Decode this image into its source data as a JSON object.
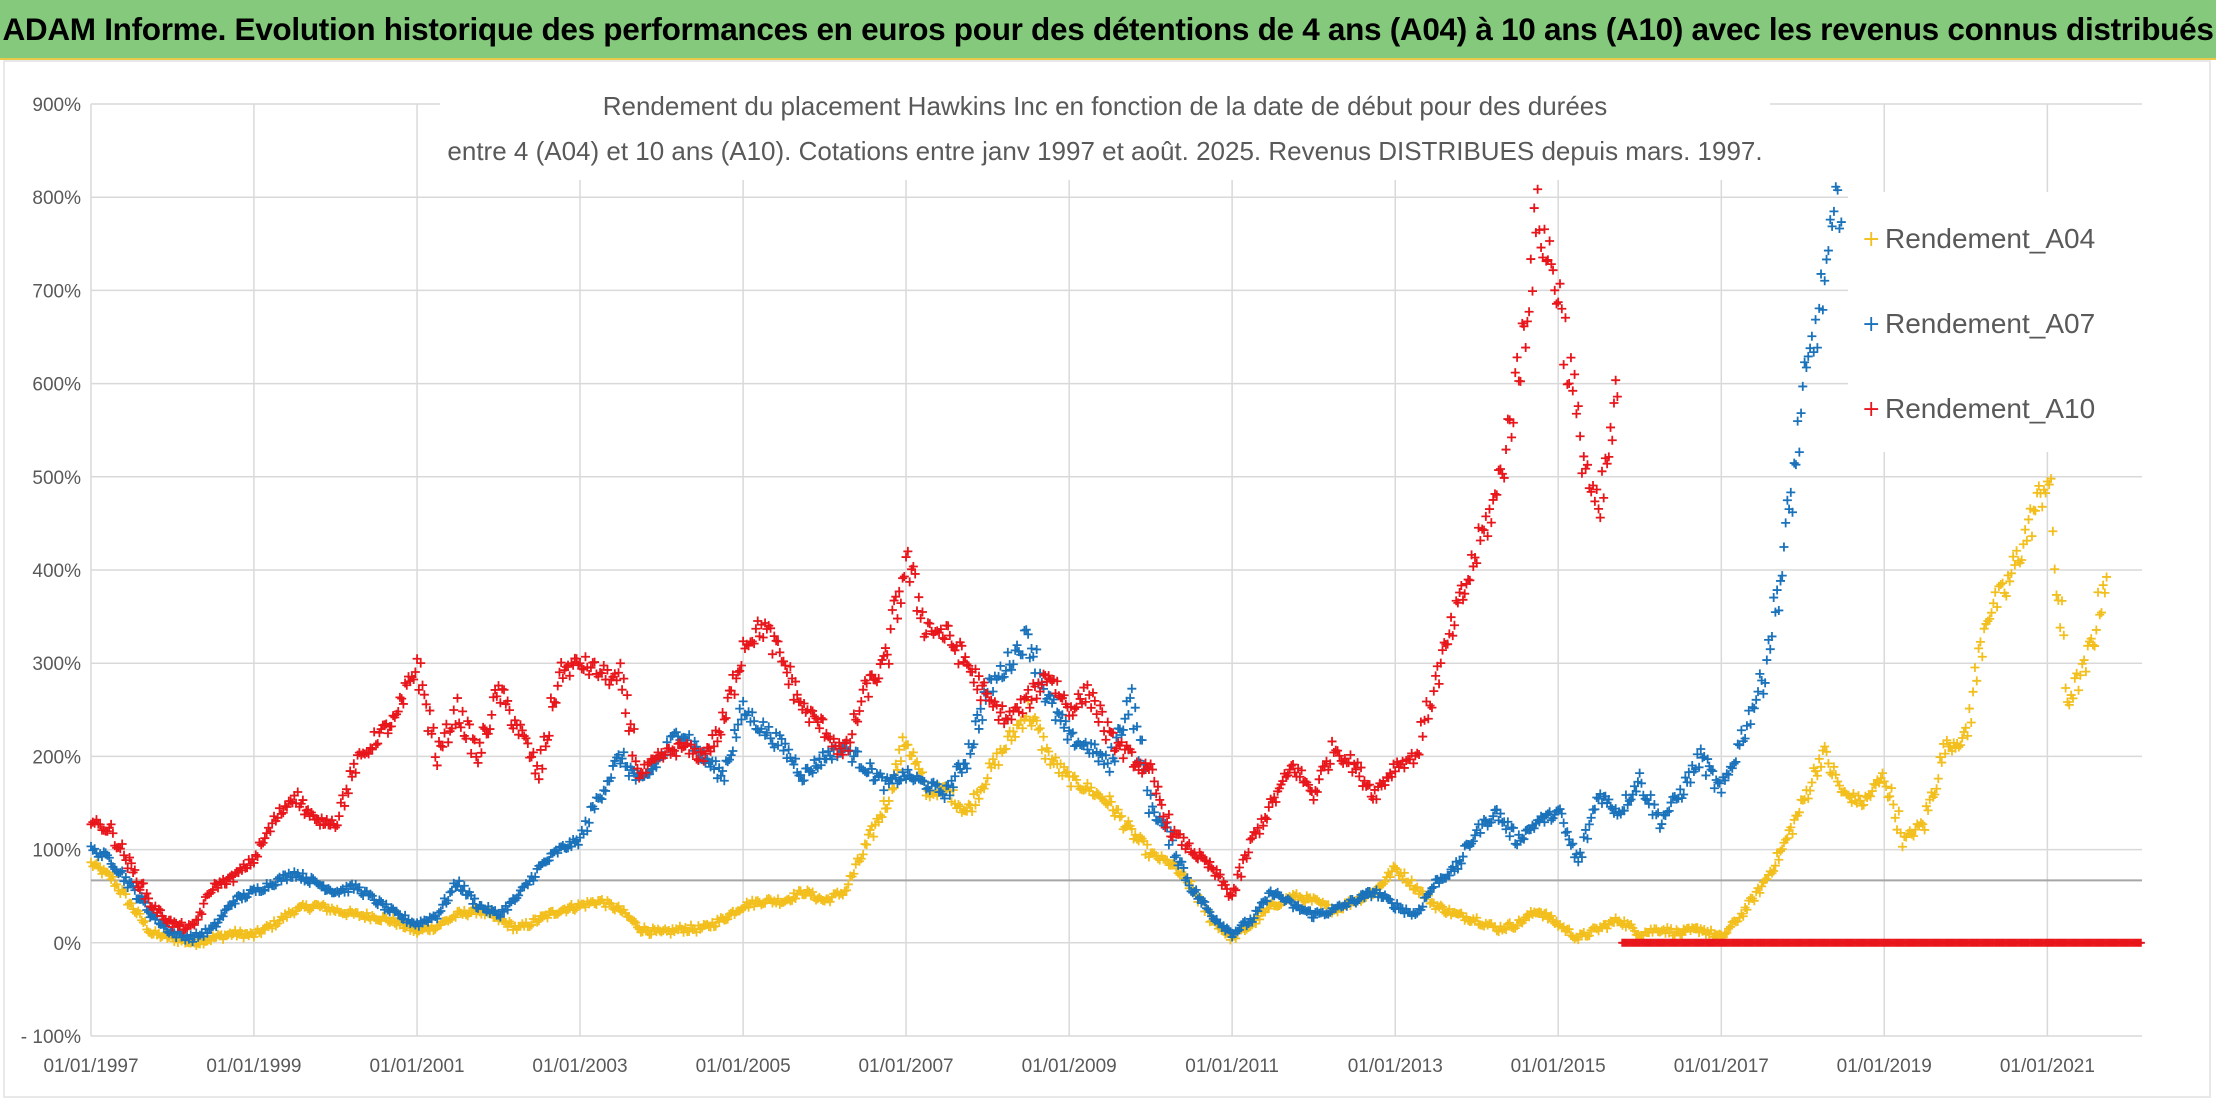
{
  "banner": {
    "title": "ADAM Informe. Evolution historique des performances en euros pour des détentions de 4 ans (A04) à 10 ans (A10) avec les revenus connus distribués"
  },
  "colors": {
    "banner_bg": "#84c97c",
    "A04": "#f2bf1d",
    "A07": "#1a72bb",
    "A10": "#e8161b",
    "grid": "#d9d9d9",
    "reference_line": "#a6a6a6"
  },
  "chart_data": {
    "type": "scatter",
    "title_lines": [
      "Rendement du placement Hawkins Inc en fonction de la date de début pour des durées",
      "entre 4 (A04) et 10 ans (A10). Cotations entre janv 1997 et août. 2025. Revenus DISTRIBUES depuis mars. 1997."
    ],
    "marker": "+",
    "x_range": [
      "1997-01-01",
      "2022-03-01"
    ],
    "y_range": [
      -100,
      900
    ],
    "y_unit": "%",
    "x_tick_labels": [
      "01/01/1997",
      "01/01/1999",
      "01/01/2001",
      "01/01/2003",
      "01/01/2005",
      "01/01/2007",
      "01/01/2009",
      "01/01/2011",
      "01/01/2013",
      "01/01/2015",
      "01/01/2017",
      "01/01/2019",
      "01/01/2021"
    ],
    "y_tick_labels": [
      "- 100%",
      "0%",
      "100%",
      "200%",
      "300%",
      "400%",
      "500%",
      "600%",
      "700%",
      "800%",
      "900%"
    ],
    "y_tick_values": [
      -100,
      0,
      100,
      200,
      300,
      400,
      500,
      600,
      700,
      800,
      900
    ],
    "reference_line_y": 67,
    "grid": true,
    "legend_placement": "right",
    "series": [
      {
        "name": "Rendement_A04",
        "color_key": "A04",
        "points": [
          [
            "1997-01-01",
            85
          ],
          [
            "1997-04-01",
            70
          ],
          [
            "1997-07-01",
            40
          ],
          [
            "1997-10-01",
            10
          ],
          [
            "1998-01-01",
            5
          ],
          [
            "1998-04-01",
            0
          ],
          [
            "1998-07-01",
            5
          ],
          [
            "1998-10-01",
            10
          ],
          [
            "1999-01-01",
            8
          ],
          [
            "1999-04-01",
            20
          ],
          [
            "1999-07-01",
            35
          ],
          [
            "1999-10-01",
            40
          ],
          [
            "2000-01-01",
            35
          ],
          [
            "2000-04-01",
            30
          ],
          [
            "2000-07-01",
            28
          ],
          [
            "2000-10-01",
            22
          ],
          [
            "2001-01-01",
            12
          ],
          [
            "2001-04-01",
            18
          ],
          [
            "2001-07-01",
            30
          ],
          [
            "2001-10-01",
            35
          ],
          [
            "2002-01-01",
            25
          ],
          [
            "2002-04-01",
            15
          ],
          [
            "2002-07-01",
            25
          ],
          [
            "2002-10-01",
            35
          ],
          [
            "2003-01-01",
            40
          ],
          [
            "2003-04-01",
            45
          ],
          [
            "2003-07-01",
            35
          ],
          [
            "2003-10-01",
            15
          ],
          [
            "2004-01-01",
            10
          ],
          [
            "2004-04-01",
            15
          ],
          [
            "2004-07-01",
            15
          ],
          [
            "2004-10-01",
            25
          ],
          [
            "2005-01-01",
            40
          ],
          [
            "2005-04-01",
            45
          ],
          [
            "2005-07-01",
            45
          ],
          [
            "2005-10-01",
            55
          ],
          [
            "2006-01-01",
            45
          ],
          [
            "2006-04-01",
            55
          ],
          [
            "2006-07-01",
            100
          ],
          [
            "2006-10-01",
            150
          ],
          [
            "2007-01-01",
            220
          ],
          [
            "2007-04-01",
            160
          ],
          [
            "2007-07-01",
            165
          ],
          [
            "2007-10-01",
            140
          ],
          [
            "2008-01-01",
            180
          ],
          [
            "2008-04-01",
            215
          ],
          [
            "2008-07-01",
            250
          ],
          [
            "2008-10-01",
            200
          ],
          [
            "2009-01-01",
            175
          ],
          [
            "2009-04-01",
            165
          ],
          [
            "2009-07-01",
            150
          ],
          [
            "2009-10-01",
            120
          ],
          [
            "2010-01-01",
            95
          ],
          [
            "2010-04-01",
            85
          ],
          [
            "2010-07-01",
            60
          ],
          [
            "2010-10-01",
            25
          ],
          [
            "2011-01-01",
            5
          ],
          [
            "2011-04-01",
            20
          ],
          [
            "2011-07-01",
            40
          ],
          [
            "2011-10-01",
            50
          ],
          [
            "2012-01-01",
            45
          ],
          [
            "2012-04-01",
            35
          ],
          [
            "2012-07-01",
            45
          ],
          [
            "2012-10-01",
            55
          ],
          [
            "2013-01-01",
            80
          ],
          [
            "2013-04-01",
            60
          ],
          [
            "2013-07-01",
            40
          ],
          [
            "2013-10-01",
            30
          ],
          [
            "2014-01-01",
            25
          ],
          [
            "2014-04-01",
            15
          ],
          [
            "2014-07-01",
            20
          ],
          [
            "2014-10-01",
            35
          ],
          [
            "2015-01-01",
            20
          ],
          [
            "2015-04-01",
            5
          ],
          [
            "2015-07-01",
            15
          ],
          [
            "2015-10-01",
            25
          ],
          [
            "2016-01-01",
            10
          ],
          [
            "2016-04-01",
            15
          ],
          [
            "2016-07-01",
            10
          ],
          [
            "2016-10-01",
            15
          ],
          [
            "2017-01-01",
            5
          ],
          [
            "2017-04-01",
            30
          ],
          [
            "2017-07-01",
            60
          ],
          [
            "2017-10-01",
            100
          ],
          [
            "2018-01-01",
            150
          ],
          [
            "2018-04-01",
            205
          ],
          [
            "2018-07-01",
            160
          ],
          [
            "2018-10-01",
            150
          ],
          [
            "2019-01-01",
            180
          ],
          [
            "2019-04-01",
            110
          ],
          [
            "2019-07-01",
            130
          ],
          [
            "2019-10-01",
            210
          ],
          [
            "2020-01-01",
            220
          ],
          [
            "2020-04-01",
            350
          ],
          [
            "2020-07-01",
            380
          ],
          [
            "2020-10-01",
            440
          ],
          [
            "2021-01-01",
            500
          ],
          [
            "2021-04-01",
            260
          ],
          [
            "2021-07-01",
            300
          ],
          [
            "2021-10-01",
            410
          ]
        ]
      },
      {
        "name": "Rendement_A07",
        "color_key": "A07",
        "points": [
          [
            "1997-01-01",
            100
          ],
          [
            "1997-04-01",
            90
          ],
          [
            "1997-07-01",
            60
          ],
          [
            "1997-10-01",
            30
          ],
          [
            "1998-01-01",
            10
          ],
          [
            "1998-04-01",
            5
          ],
          [
            "1998-07-01",
            15
          ],
          [
            "1998-10-01",
            45
          ],
          [
            "1999-01-01",
            55
          ],
          [
            "1999-04-01",
            65
          ],
          [
            "1999-07-01",
            75
          ],
          [
            "1999-10-01",
            65
          ],
          [
            "2000-01-01",
            55
          ],
          [
            "2000-04-01",
            60
          ],
          [
            "2000-07-01",
            45
          ],
          [
            "2000-10-01",
            30
          ],
          [
            "2001-01-01",
            20
          ],
          [
            "2001-04-01",
            30
          ],
          [
            "2001-07-01",
            65
          ],
          [
            "2001-10-01",
            40
          ],
          [
            "2002-01-01",
            30
          ],
          [
            "2002-04-01",
            50
          ],
          [
            "2002-07-01",
            80
          ],
          [
            "2002-10-01",
            100
          ],
          [
            "2003-01-01",
            110
          ],
          [
            "2003-04-01",
            160
          ],
          [
            "2003-07-01",
            200
          ],
          [
            "2003-10-01",
            170
          ],
          [
            "2004-01-01",
            200
          ],
          [
            "2004-04-01",
            230
          ],
          [
            "2004-07-01",
            200
          ],
          [
            "2004-10-01",
            180
          ],
          [
            "2005-01-01",
            250
          ],
          [
            "2005-04-01",
            230
          ],
          [
            "2005-07-01",
            210
          ],
          [
            "2005-10-01",
            180
          ],
          [
            "2006-01-01",
            200
          ],
          [
            "2006-04-01",
            210
          ],
          [
            "2006-07-01",
            190
          ],
          [
            "2006-10-01",
            170
          ],
          [
            "2007-01-01",
            180
          ],
          [
            "2007-04-01",
            170
          ],
          [
            "2007-07-01",
            160
          ],
          [
            "2007-10-01",
            200
          ],
          [
            "2008-01-01",
            270
          ],
          [
            "2008-04-01",
            300
          ],
          [
            "2008-07-01",
            330
          ],
          [
            "2008-10-01",
            260
          ],
          [
            "2009-01-01",
            220
          ],
          [
            "2009-04-01",
            210
          ],
          [
            "2009-07-01",
            190
          ],
          [
            "2009-10-01",
            265
          ],
          [
            "2010-01-01",
            150
          ],
          [
            "2010-04-01",
            110
          ],
          [
            "2010-07-01",
            60
          ],
          [
            "2010-10-01",
            30
          ],
          [
            "2011-01-01",
            10
          ],
          [
            "2011-04-01",
            25
          ],
          [
            "2011-07-01",
            55
          ],
          [
            "2011-10-01",
            40
          ],
          [
            "2012-01-01",
            30
          ],
          [
            "2012-04-01",
            35
          ],
          [
            "2012-07-01",
            45
          ],
          [
            "2012-10-01",
            55
          ],
          [
            "2013-01-01",
            40
          ],
          [
            "2013-04-01",
            30
          ],
          [
            "2013-07-01",
            65
          ],
          [
            "2013-10-01",
            80
          ],
          [
            "2014-01-01",
            120
          ],
          [
            "2014-04-01",
            140
          ],
          [
            "2014-07-01",
            110
          ],
          [
            "2014-10-01",
            130
          ],
          [
            "2015-01-01",
            140
          ],
          [
            "2015-04-01",
            85
          ],
          [
            "2015-07-01",
            160
          ],
          [
            "2015-10-01",
            140
          ],
          [
            "2016-01-01",
            175
          ],
          [
            "2016-04-01",
            130
          ],
          [
            "2016-07-01",
            160
          ],
          [
            "2016-10-01",
            200
          ],
          [
            "2017-01-01",
            160
          ],
          [
            "2017-04-01",
            220
          ],
          [
            "2017-07-01",
            280
          ],
          [
            "2017-10-01",
            400
          ],
          [
            "2018-01-01",
            580
          ],
          [
            "2018-04-01",
            700
          ],
          [
            "2018-07-01",
            820
          ]
        ]
      },
      {
        "name": "Rendement_A10",
        "color_key": "A10",
        "points": [
          [
            "1997-01-01",
            130
          ],
          [
            "1997-04-01",
            120
          ],
          [
            "1997-07-01",
            80
          ],
          [
            "1997-10-01",
            40
          ],
          [
            "1998-01-01",
            20
          ],
          [
            "1998-04-01",
            15
          ],
          [
            "1998-07-01",
            60
          ],
          [
            "1998-10-01",
            70
          ],
          [
            "1999-01-01",
            90
          ],
          [
            "1999-04-01",
            130
          ],
          [
            "1999-07-01",
            160
          ],
          [
            "1999-10-01",
            130
          ],
          [
            "2000-01-01",
            130
          ],
          [
            "2000-04-01",
            190
          ],
          [
            "2000-07-01",
            220
          ],
          [
            "2000-10-01",
            240
          ],
          [
            "2001-01-01",
            300
          ],
          [
            "2001-04-01",
            200
          ],
          [
            "2001-07-01",
            250
          ],
          [
            "2001-10-01",
            200
          ],
          [
            "2002-01-01",
            270
          ],
          [
            "2002-04-01",
            230
          ],
          [
            "2002-07-01",
            180
          ],
          [
            "2002-10-01",
            290
          ],
          [
            "2003-01-01",
            300
          ],
          [
            "2003-04-01",
            290
          ],
          [
            "2003-07-01",
            280
          ],
          [
            "2003-10-01",
            180
          ],
          [
            "2004-01-01",
            200
          ],
          [
            "2004-04-01",
            210
          ],
          [
            "2004-07-01",
            200
          ],
          [
            "2004-10-01",
            230
          ],
          [
            "2005-01-01",
            320
          ],
          [
            "2005-04-01",
            340
          ],
          [
            "2005-07-01",
            300
          ],
          [
            "2005-10-01",
            250
          ],
          [
            "2006-01-01",
            230
          ],
          [
            "2006-04-01",
            200
          ],
          [
            "2006-07-01",
            270
          ],
          [
            "2006-10-01",
            300
          ],
          [
            "2007-01-01",
            410
          ],
          [
            "2007-04-01",
            340
          ],
          [
            "2007-07-01",
            330
          ],
          [
            "2007-10-01",
            300
          ],
          [
            "2008-01-01",
            260
          ],
          [
            "2008-04-01",
            240
          ],
          [
            "2008-07-01",
            260
          ],
          [
            "2008-10-01",
            290
          ],
          [
            "2009-01-01",
            250
          ],
          [
            "2009-04-01",
            270
          ],
          [
            "2009-07-01",
            220
          ],
          [
            "2009-10-01",
            200
          ],
          [
            "2010-01-01",
            180
          ],
          [
            "2010-04-01",
            120
          ],
          [
            "2010-07-01",
            100
          ],
          [
            "2010-10-01",
            80
          ],
          [
            "2011-01-01",
            50
          ],
          [
            "2011-04-01",
            110
          ],
          [
            "2011-07-01",
            150
          ],
          [
            "2011-10-01",
            190
          ],
          [
            "2012-01-01",
            160
          ],
          [
            "2012-04-01",
            210
          ],
          [
            "2012-07-01",
            190
          ],
          [
            "2012-10-01",
            160
          ],
          [
            "2013-01-01",
            190
          ],
          [
            "2013-04-01",
            200
          ],
          [
            "2013-07-01",
            280
          ],
          [
            "2013-10-01",
            350
          ],
          [
            "2014-01-01",
            420
          ],
          [
            "2014-04-01",
            480
          ],
          [
            "2014-07-01",
            600
          ],
          [
            "2014-10-01",
            780
          ],
          [
            "2015-01-01",
            700
          ],
          [
            "2015-04-01",
            550
          ],
          [
            "2015-07-01",
            450
          ],
          [
            "2015-10-01",
            600
          ]
        ],
        "zero_tail": [
          "2015-10-15",
          "2022-03-01",
          0
        ]
      }
    ]
  }
}
